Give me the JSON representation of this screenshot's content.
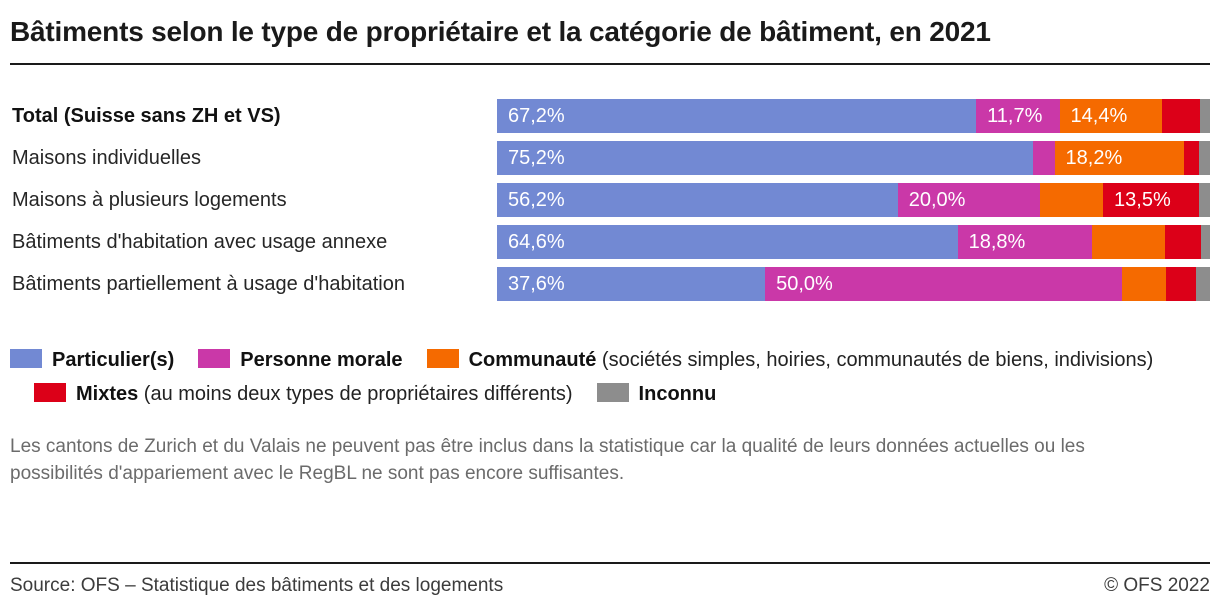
{
  "title": "Bâtiments selon le type de propriétaire et la catégorie de bâtiment, en 2021",
  "colors": {
    "blue": "#7289d3",
    "magenta": "#ca38a8",
    "orange": "#f56a00",
    "red": "#dc0018",
    "gray": "#8d8d8d"
  },
  "chart_data": {
    "type": "bar",
    "orientation": "horizontal",
    "stacked": true,
    "unit": "%",
    "xlim": [
      0,
      100
    ],
    "grid": false,
    "legend_position": "bottom",
    "categories": [
      {
        "label": "Total (Suisse sans ZH et VS)",
        "bold": true
      },
      {
        "label": "Maisons individuelles",
        "bold": false
      },
      {
        "label": "Maisons à plusieurs logements",
        "bold": false
      },
      {
        "label": "Bâtiments d'habitation avec usage annexe",
        "bold": false
      },
      {
        "label": "Bâtiments partiellement à usage d'habitation",
        "bold": false
      }
    ],
    "series": [
      {
        "name": "Particulier(s)",
        "key": "particuliers",
        "color_key": "blue",
        "values": [
          67.2,
          75.2,
          56.2,
          64.6,
          37.6
        ],
        "labels": [
          "67,2%",
          "75,2%",
          "56,2%",
          "64,6%",
          "37,6%"
        ]
      },
      {
        "name": "Personne morale",
        "key": "personne-morale",
        "color_key": "magenta",
        "values": [
          11.7,
          3.0,
          20.0,
          18.8,
          50.0
        ],
        "labels": [
          "11,7%",
          "",
          "20,0%",
          "18,8%",
          "50,0%"
        ]
      },
      {
        "name": "Communauté",
        "key": "communaute",
        "color_key": "orange",
        "values": [
          14.4,
          18.2,
          8.8,
          10.3,
          6.2
        ],
        "labels": [
          "14,4%",
          "18,2%",
          "",
          "",
          ""
        ]
      },
      {
        "name": "Mixtes",
        "key": "mixtes",
        "color_key": "red",
        "values": [
          5.3,
          2.1,
          13.5,
          5.0,
          4.2
        ],
        "labels": [
          "",
          "",
          "13,5%",
          "",
          ""
        ]
      },
      {
        "name": "Inconnu",
        "key": "inconnu",
        "color_key": "gray",
        "values": [
          1.4,
          1.5,
          1.5,
          1.3,
          2.0
        ],
        "labels": [
          "",
          "",
          "",
          "",
          ""
        ]
      }
    ]
  },
  "legend": {
    "items": [
      {
        "key": "particuliers",
        "color_key": "blue",
        "label": "Particulier(s)",
        "note": ""
      },
      {
        "key": "personne-morale",
        "color_key": "magenta",
        "label": "Personne morale",
        "note": ""
      },
      {
        "key": "communaute",
        "color_key": "orange",
        "label": "Communauté",
        "note": " (sociétés simples, hoiries, communautés de biens, indivisions)"
      },
      {
        "key": "mixtes",
        "color_key": "red",
        "label": "Mixtes",
        "note": " (au moins deux types de propriétaires différents)"
      },
      {
        "key": "inconnu",
        "color_key": "gray",
        "label": "Inconnu",
        "note": ""
      }
    ]
  },
  "footnote": "Les cantons de Zurich et du Valais ne peuvent pas être inclus dans la statistique car la qualité de leurs données actuelles ou les possibilités d'appariement avec le RegBL ne sont pas encore suffisantes.",
  "footer": {
    "source": "Source: OFS – Statistique des bâtiments et des logements",
    "copyright": "© OFS 2022"
  }
}
